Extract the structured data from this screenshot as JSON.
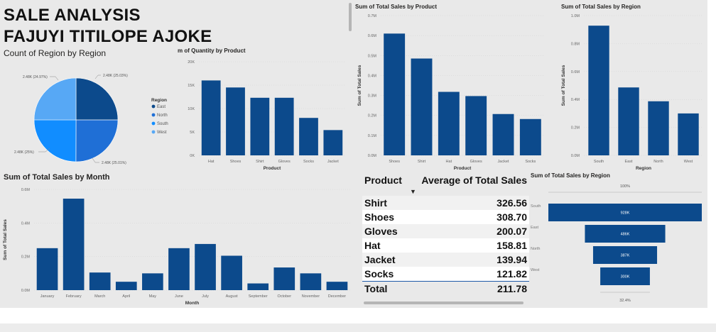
{
  "colors": {
    "bar": "#0c4a8c",
    "canvas": "#e9e9e9"
  },
  "header": {
    "line1": "SALE ANALYSIS",
    "line2": "FAJUYI TITILOPE AJOKE"
  },
  "pie": {
    "title": "Count of Region by Region",
    "legend_title": "Region",
    "labels": [
      "2.48K (24.97%)",
      "2.48K (25.03%)",
      "2.48K (25%)",
      "2.48K (25.01%)"
    ]
  },
  "chart_data": [
    {
      "id": "pie_region",
      "type": "pie",
      "title": "Count of Region by Region",
      "categories": [
        "East",
        "North",
        "South",
        "West"
      ],
      "values": [
        2480,
        2480,
        2480,
        2480
      ],
      "percent": [
        25.03,
        25.01,
        25.0,
        24.97
      ],
      "colors": [
        "#0c4a8c",
        "#1f6fd6",
        "#118dff",
        "#57a8f5"
      ],
      "legend": "right"
    },
    {
      "id": "qty_product",
      "type": "bar",
      "title": "m of Quantity by Product",
      "xlabel": "Product",
      "ylabel": "",
      "categories": [
        "Hat",
        "Shoes",
        "Shirt",
        "Gloves",
        "Socks",
        "Jacket"
      ],
      "values": [
        16000,
        14500,
        12300,
        12300,
        8000,
        5400
      ],
      "yticks": [
        "0K",
        "5K",
        "10K",
        "15K",
        "20K"
      ],
      "ylim": [
        0,
        20000
      ]
    },
    {
      "id": "sales_product",
      "type": "bar",
      "title": "Sum of Total Sales by Product",
      "xlabel": "Product",
      "ylabel": "Sum of Total Sales",
      "categories": [
        "Shoes",
        "Shirt",
        "Hat",
        "Gloves",
        "Jacket",
        "Socks"
      ],
      "values": [
        610000,
        485000,
        318000,
        297000,
        207000,
        182000
      ],
      "yticks": [
        "0.0M",
        "0.1M",
        "0.2M",
        "0.3M",
        "0.4M",
        "0.5M",
        "0.6M",
        "0.7M"
      ],
      "ylim": [
        0,
        700000
      ]
    },
    {
      "id": "sales_region",
      "type": "bar",
      "title": "Sum of Total Sales by Region",
      "xlabel": "Region",
      "ylabel": "Sum of Total Sales",
      "categories": [
        "South",
        "East",
        "North",
        "West"
      ],
      "values": [
        928000,
        486000,
        387000,
        300000
      ],
      "yticks": [
        "0.0M",
        "0.2M",
        "0.4M",
        "0.6M",
        "0.8M",
        "1.0M"
      ],
      "ylim": [
        0,
        1000000
      ]
    },
    {
      "id": "sales_month",
      "type": "bar",
      "title": "Sum of Total Sales by Month",
      "xlabel": "Month",
      "ylabel": "Sum of Total Sales",
      "categories": [
        "January",
        "February",
        "March",
        "April",
        "May",
        "June",
        "July",
        "August",
        "September",
        "October",
        "November",
        "December"
      ],
      "values": [
        250000,
        545000,
        105000,
        50000,
        100000,
        250000,
        275000,
        205000,
        40000,
        135000,
        100000,
        50000
      ],
      "yticks": [
        "0.0M",
        "0.2M",
        "0.4M",
        "0.6M"
      ],
      "ylim": [
        0,
        600000
      ]
    },
    {
      "id": "funnel_region",
      "type": "bar",
      "subtype": "funnel",
      "title": "Sum of Total Sales by Region",
      "categories": [
        "South",
        "East",
        "North",
        "West"
      ],
      "values": [
        928000,
        486000,
        387000,
        300000
      ],
      "data_labels": [
        "928K",
        "486K",
        "387K",
        "300K"
      ],
      "top_label": "100%",
      "bottom_label": "32.4%"
    }
  ],
  "table": {
    "columns": [
      "Product",
      "Average of Total Sales"
    ],
    "rows": [
      [
        "Shirt",
        "326.56"
      ],
      [
        "Shoes",
        "308.70"
      ],
      [
        "Gloves",
        "200.07"
      ],
      [
        "Hat",
        "158.81"
      ],
      [
        "Jacket",
        "139.94"
      ],
      [
        "Socks",
        "121.82"
      ]
    ],
    "total_label": "Total",
    "total_value": "211.78"
  }
}
